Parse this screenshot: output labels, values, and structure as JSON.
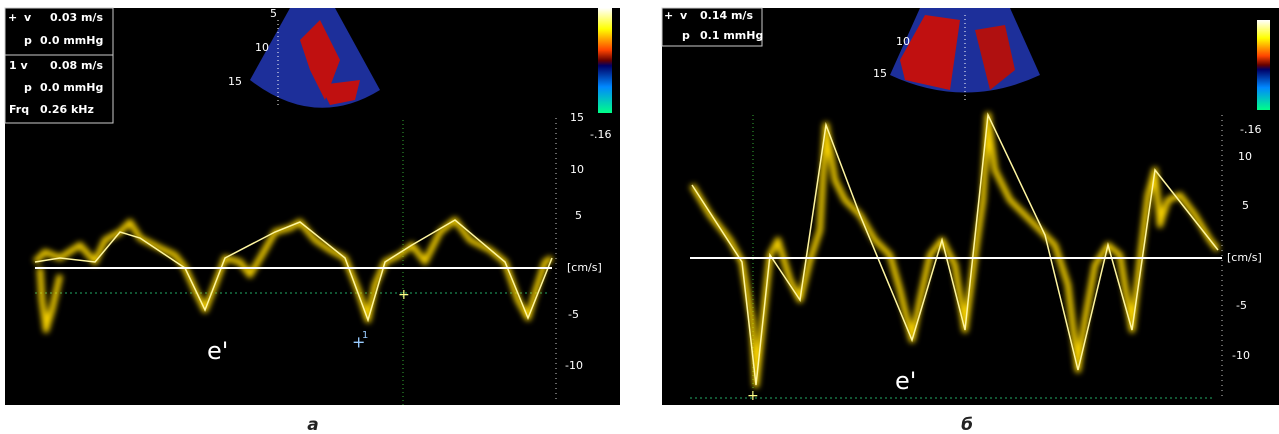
{
  "panels": [
    {
      "caption": "а",
      "readouts": [
        "v",
        "0.03 m/s",
        "p",
        "0.0 mmHg",
        "1 v",
        "0.08 m/s",
        "p",
        "0.0 mmHg",
        "Frq",
        "0.26 kHz"
      ],
      "scale": [
        "15",
        "10",
        "5",
        "[cm/s]",
        "-5",
        "-10"
      ],
      "color_bar": "-.16",
      "depth": [
        "5",
        "10",
        "15"
      ],
      "annotation": "e'",
      "marker": "1"
    },
    {
      "caption": "б",
      "readouts": [
        "v",
        "0.14 m/s",
        "p",
        "0.1 mmHg"
      ],
      "scale": [
        "10",
        "5",
        "[cm/s]",
        "-5",
        "-10"
      ],
      "color_bar": "-.16",
      "depth": [
        "10",
        "15"
      ],
      "annotation": "e'"
    }
  ]
}
